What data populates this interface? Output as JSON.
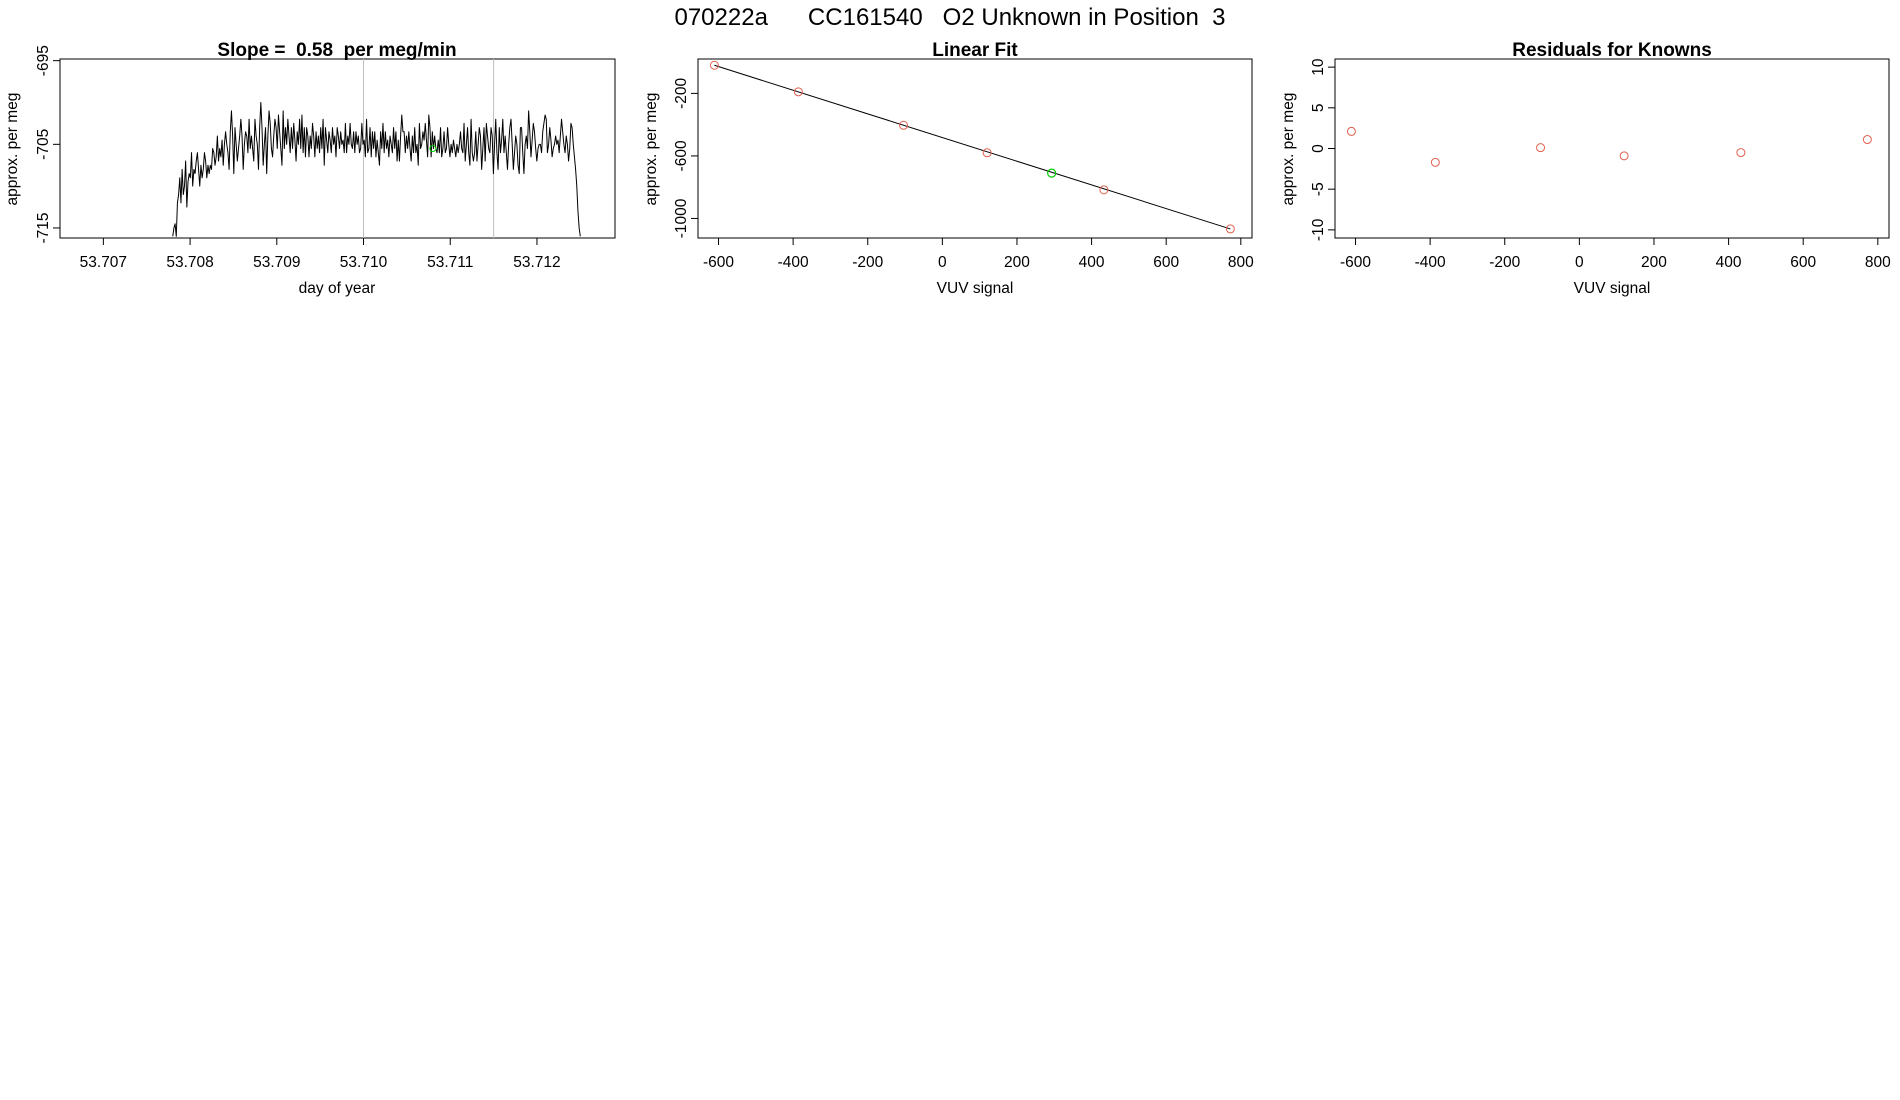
{
  "figure": {
    "title": "070222a      CC161540   O2 Unknown in Position  3"
  },
  "chart_data": [
    {
      "type": "line",
      "title": "Slope =  0.58  per meg/min",
      "xlabel": "day of year",
      "ylabel": "approx. per meg",
      "xlim": [
        53.7065,
        53.7129
      ],
      "ylim": [
        -716.2,
        -694.8
      ],
      "x_ticks": [
        "53.707",
        "53.708",
        "53.709",
        "53.710",
        "53.711",
        "53.712"
      ],
      "y_ticks": [
        "-695",
        "-705",
        "-715"
      ],
      "vertical_lines_x": [
        53.71,
        53.7115
      ],
      "colors": {
        "trace": "#000000",
        "marker": "#00cc00",
        "vlines": "#bebebe"
      },
      "trace_x_range": [
        53.7078,
        53.7125
      ],
      "trace_y": [
        -716,
        -715,
        -714.5,
        -716,
        -712,
        -711,
        -709,
        -712,
        -708,
        -711,
        -710,
        -707,
        -712.5,
        -709.5,
        -708.5,
        -709,
        -706,
        -710,
        -708,
        -708.5,
        -707,
        -706,
        -708,
        -710,
        -707.5,
        -709,
        -708,
        -706,
        -707,
        -709,
        -707.5,
        -708.5,
        -707.5,
        -708,
        -705.5,
        -706,
        -707.5,
        -706.5,
        -704,
        -707,
        -705.5,
        -706.5,
        -704.5,
        -707.5,
        -705,
        -703.5,
        -705,
        -706,
        -708,
        -703.5,
        -701,
        -704,
        -708.5,
        -703,
        -705,
        -707,
        -705.5,
        -704,
        -702,
        -704,
        -708,
        -705,
        -703.5,
        -704,
        -706,
        -702,
        -705.5,
        -704,
        -705.5,
        -707,
        -702,
        -704,
        -705,
        -708,
        -703,
        -700,
        -703,
        -707.5,
        -705,
        -703,
        -708.5,
        -704,
        -701,
        -702.5,
        -705.5,
        -706.5,
        -704,
        -702,
        -703,
        -705.5,
        -701.5,
        -703.5,
        -705.5,
        -707.5,
        -701,
        -705.5,
        -703,
        -705,
        -702,
        -704,
        -706,
        -703,
        -705.5,
        -702.5,
        -704.5,
        -707,
        -703.5,
        -705,
        -702,
        -705.5,
        -701.5,
        -706,
        -703,
        -706.5,
        -703,
        -704,
        -706.5,
        -704,
        -705.5,
        -702.5,
        -704,
        -706.5,
        -703.5,
        -705.5,
        -704,
        -706,
        -703,
        -705.5,
        -702,
        -707.5,
        -703,
        -704.5,
        -706,
        -703.5,
        -704.5,
        -706,
        -703,
        -705,
        -704,
        -706.5,
        -703,
        -704,
        -705.5,
        -703.5,
        -705,
        -704.5,
        -706,
        -702.5,
        -706,
        -704,
        -705,
        -702.5,
        -705,
        -705.5,
        -703.5,
        -706,
        -703.5,
        -705,
        -704,
        -706,
        -705.5,
        -702.5,
        -705,
        -704.5,
        -706.5,
        -702,
        -706,
        -705.5,
        -703,
        -706.5,
        -703.5,
        -705.5,
        -703.5,
        -706.5,
        -704.5,
        -706,
        -707.5,
        -703.5,
        -705.5,
        -702.5,
        -706,
        -703.5,
        -705.5,
        -704.5,
        -706.5,
        -704,
        -705,
        -706,
        -703,
        -705.5,
        -703.5,
        -707,
        -704.5,
        -707,
        -704,
        -701.5,
        -703.5,
        -703.5,
        -706,
        -704,
        -705.5,
        -703.5,
        -705.5,
        -707,
        -704,
        -706,
        -703,
        -706,
        -705,
        -707.5,
        -702.5,
        -705.5,
        -705,
        -703.5,
        -704.5,
        -702.5,
        -704.5,
        -706.5,
        -701.5,
        -703,
        -706.5,
        -703.5,
        -705.5,
        -704,
        -705.5,
        -706,
        -704.5,
        -706,
        -703,
        -706.5,
        -705.5,
        -703.5,
        -706,
        -705.5,
        -703,
        -705,
        -706.5,
        -705,
        -706,
        -704.5,
        -705.5,
        -706.5,
        -705,
        -706,
        -705,
        -703.5,
        -705.5,
        -706,
        -702.5,
        -707,
        -705,
        -703,
        -706,
        -707.5,
        -702,
        -706,
        -707,
        -706,
        -703.5,
        -707,
        -705,
        -703,
        -704,
        -708,
        -705.5,
        -703,
        -707,
        -702.5,
        -704,
        -705.5,
        -706,
        -703,
        -704,
        -708.5,
        -705,
        -702,
        -706,
        -708,
        -703,
        -706,
        -704.5,
        -702,
        -706,
        -704,
        -706,
        -708,
        -705,
        -703,
        -702,
        -705,
        -708,
        -706,
        -704,
        -705,
        -707.5,
        -708.5,
        -703,
        -703,
        -706,
        -708.5,
        -705,
        -704,
        -705.5,
        -701,
        -703.5,
        -706.5,
        -704.5,
        -702.5,
        -703.5,
        -705.5,
        -707,
        -705.5,
        -705,
        -705,
        -706,
        -703.5,
        -702.5,
        -701.5,
        -702,
        -706,
        -705,
        -703,
        -704.5,
        -706.5,
        -705.5,
        -705,
        -704,
        -705,
        -704.5,
        -706,
        -704,
        -702,
        -703.5,
        -705,
        -706,
        -704,
        -705,
        -707,
        -705.5,
        -702.5,
        -703,
        -705,
        -706.5,
        -708,
        -710,
        -713,
        -715,
        -716
      ],
      "marker_points": [
        {
          "x": 53.7108,
          "y": -705.5
        }
      ]
    },
    {
      "type": "scatter",
      "title": "Linear Fit",
      "xlabel": "VUV signal",
      "ylabel": "approx. per meg",
      "xlim": [
        -655,
        830
      ],
      "ylim": [
        -1125,
        20
      ],
      "x_ticks": [
        "-600",
        "-400",
        "-200",
        "0",
        "200",
        "400",
        "600",
        "800"
      ],
      "y_ticks": [
        "-200",
        "-600",
        "-1000"
      ],
      "colors": {
        "points": "#e0604f",
        "unknown": "#00cc00",
        "fit": "#000000"
      },
      "fit_line": [
        [
          -611,
          -20
        ],
        [
          772,
          -1067
        ]
      ],
      "points": [
        {
          "x": -611,
          "y": -20
        },
        {
          "x": -386,
          "y": -190
        },
        {
          "x": -104,
          "y": -404
        },
        {
          "x": 120,
          "y": -580
        },
        {
          "x": 433,
          "y": -817
        },
        {
          "x": 772,
          "y": -1067
        }
      ],
      "unknown_point": {
        "x": 293,
        "y": -710
      }
    },
    {
      "type": "scatter",
      "title": "Residuals for Knowns",
      "xlabel": "VUV signal",
      "ylabel": "approx. per meg",
      "xlim": [
        -655,
        830
      ],
      "ylim": [
        -11,
        11
      ],
      "x_ticks": [
        "-600",
        "-400",
        "-200",
        "0",
        "200",
        "400",
        "600",
        "800"
      ],
      "y_ticks": [
        "10",
        "5",
        "0",
        "-5",
        "-10"
      ],
      "colors": {
        "points": "#e0604f"
      },
      "points": [
        {
          "x": -611,
          "y": 2.1
        },
        {
          "x": -386,
          "y": -1.7
        },
        {
          "x": -104,
          "y": 0.1
        },
        {
          "x": 120,
          "y": -0.9
        },
        {
          "x": 433,
          "y": -0.5
        },
        {
          "x": 772,
          "y": 1.1
        }
      ]
    }
  ]
}
